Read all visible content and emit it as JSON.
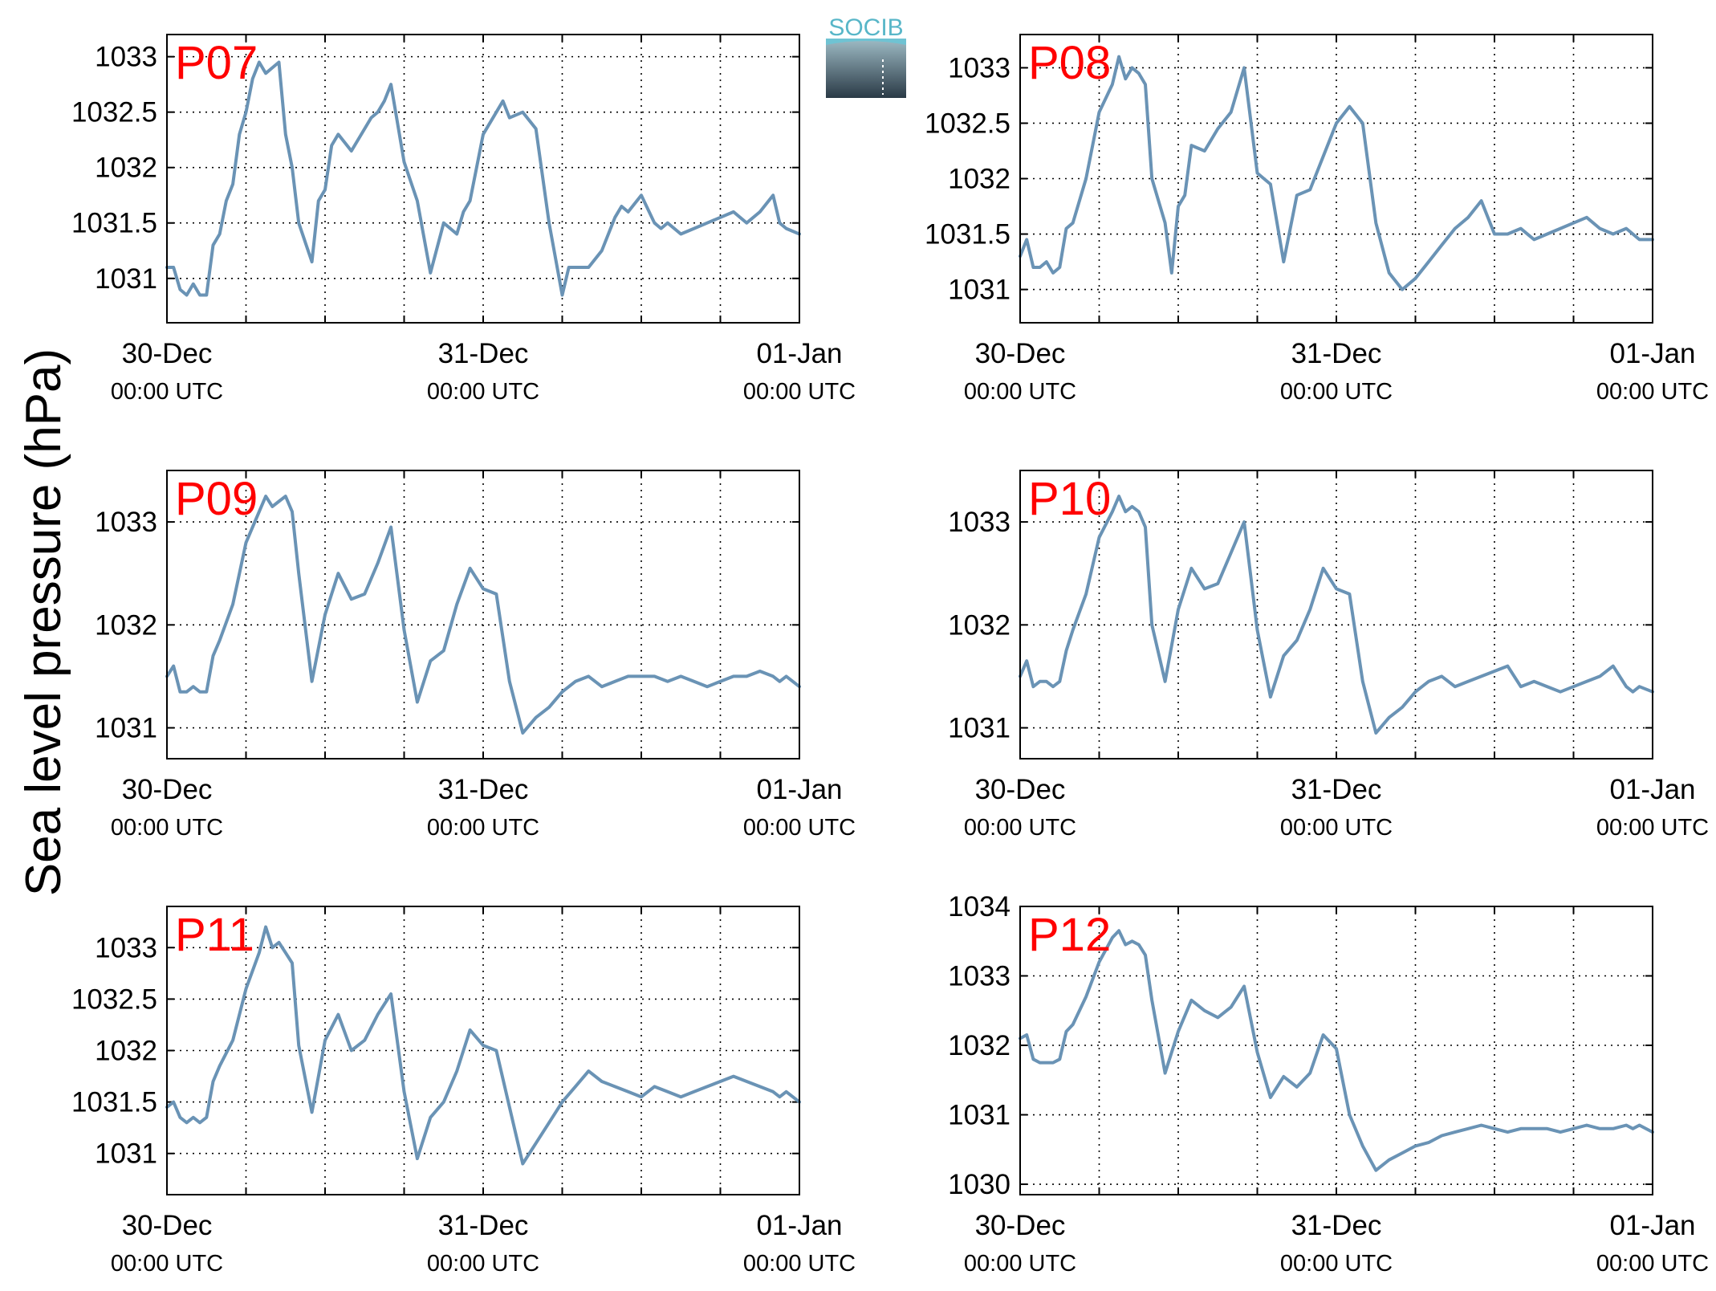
{
  "figure": {
    "ylabel": "Sea level pressure (hPa)",
    "logo_text": "SOCIB",
    "line_color": "#6a93b5",
    "station_label_color": "#ff0000",
    "x_ticks": [
      {
        "day": "30-Dec",
        "time": "00:00 UTC"
      },
      {
        "day": "31-Dec",
        "time": "00:00 UTC"
      },
      {
        "day": "01-Jan",
        "time": "00:00 UTC"
      }
    ]
  },
  "chart_data": [
    {
      "type": "line",
      "title": "P07",
      "ylim": [
        1030.6,
        1033.2
      ],
      "yticks": [
        "1031",
        "1031.5",
        "1032",
        "1032.5",
        "1033"
      ],
      "xlim": [
        0,
        48
      ],
      "grid": true,
      "x": [
        0,
        0.5,
        1,
        1.5,
        2,
        2.5,
        3,
        3.5,
        4,
        4.5,
        5,
        5.5,
        6,
        6.5,
        7,
        7.5,
        8,
        8.5,
        9,
        9.5,
        10,
        11,
        11.5,
        12,
        12.5,
        13,
        14,
        15,
        15.5,
        16,
        16.5,
        17,
        18,
        19,
        20,
        21,
        22,
        22.5,
        23,
        24,
        25,
        25.5,
        26,
        27,
        28,
        29,
        30,
        30.5,
        31,
        32,
        33,
        34,
        34.5,
        35,
        36,
        37,
        37.5,
        38,
        39,
        40,
        41,
        42,
        43,
        44,
        45,
        46,
        46.5,
        47,
        48
      ],
      "values": [
        1031.1,
        1031.1,
        1030.9,
        1030.85,
        1030.95,
        1030.85,
        1030.85,
        1031.3,
        1031.4,
        1031.7,
        1031.85,
        1032.3,
        1032.5,
        1032.8,
        1032.95,
        1032.85,
        1032.9,
        1032.95,
        1032.3,
        1032.0,
        1031.5,
        1031.15,
        1031.7,
        1031.8,
        1032.2,
        1032.3,
        1032.15,
        1032.35,
        1032.45,
        1032.5,
        1032.6,
        1032.75,
        1032.05,
        1031.7,
        1031.05,
        1031.5,
        1031.4,
        1031.6,
        1031.7,
        1032.3,
        1032.5,
        1032.6,
        1032.45,
        1032.5,
        1032.35,
        1031.5,
        1030.85,
        1031.1,
        1031.1,
        1031.1,
        1031.25,
        1031.55,
        1031.65,
        1031.6,
        1031.75,
        1031.5,
        1031.45,
        1031.5,
        1031.4,
        1031.45,
        1031.5,
        1031.55,
        1031.6,
        1031.5,
        1031.6,
        1031.75,
        1031.5,
        1031.45,
        1031.4
      ]
    },
    {
      "type": "line",
      "title": "P08",
      "ylim": [
        1030.7,
        1033.3
      ],
      "yticks": [
        "1031",
        "1031.5",
        "1032",
        "1032.5",
        "1033"
      ],
      "xlim": [
        0,
        48
      ],
      "grid": true,
      "x": [
        0,
        0.5,
        1,
        1.5,
        2,
        2.5,
        3,
        3.5,
        4,
        5,
        6,
        7,
        7.5,
        8,
        8.5,
        9,
        9.5,
        10,
        11,
        11.5,
        12,
        12.5,
        13,
        14,
        15,
        16,
        17,
        18,
        19,
        20,
        21,
        22,
        23,
        24,
        25,
        26,
        27,
        28,
        29,
        30,
        31,
        32,
        33,
        34,
        35,
        36,
        37,
        38,
        39,
        40,
        41,
        42,
        43,
        44,
        45,
        46,
        46.5,
        47,
        48
      ],
      "values": [
        1031.3,
        1031.45,
        1031.2,
        1031.2,
        1031.25,
        1031.15,
        1031.2,
        1031.55,
        1031.6,
        1032.0,
        1032.6,
        1032.85,
        1033.1,
        1032.9,
        1033.0,
        1032.95,
        1032.85,
        1032.0,
        1031.6,
        1031.15,
        1031.75,
        1031.85,
        1032.3,
        1032.25,
        1032.45,
        1032.6,
        1033.0,
        1032.05,
        1031.95,
        1031.25,
        1031.85,
        1031.9,
        1032.2,
        1032.5,
        1032.65,
        1032.5,
        1031.6,
        1031.15,
        1031.0,
        1031.1,
        1031.25,
        1031.4,
        1031.55,
        1031.65,
        1031.8,
        1031.5,
        1031.5,
        1031.55,
        1031.45,
        1031.5,
        1031.55,
        1031.6,
        1031.65,
        1031.55,
        1031.5,
        1031.55,
        1031.5,
        1031.45,
        1031.45
      ]
    },
    {
      "type": "line",
      "title": "P09",
      "ylim": [
        1030.7,
        1033.5
      ],
      "yticks": [
        "1031",
        "1032",
        "1033"
      ],
      "xlim": [
        0,
        48
      ],
      "grid": true,
      "x": [
        0,
        0.5,
        1,
        1.5,
        2,
        2.5,
        3,
        3.5,
        4,
        5,
        6,
        7,
        7.5,
        8,
        8.5,
        9,
        9.5,
        10,
        11,
        12,
        13,
        14,
        15,
        16,
        17,
        18,
        19,
        20,
        21,
        22,
        23,
        24,
        25,
        26,
        27,
        28,
        29,
        30,
        31,
        32,
        33,
        34,
        35,
        36,
        37,
        38,
        39,
        40,
        41,
        42,
        43,
        44,
        45,
        46,
        46.5,
        47,
        48
      ],
      "values": [
        1031.5,
        1031.6,
        1031.35,
        1031.35,
        1031.4,
        1031.35,
        1031.35,
        1031.7,
        1031.85,
        1032.2,
        1032.8,
        1033.1,
        1033.25,
        1033.15,
        1033.2,
        1033.25,
        1033.1,
        1032.5,
        1031.45,
        1032.1,
        1032.5,
        1032.25,
        1032.3,
        1032.6,
        1032.95,
        1031.95,
        1031.25,
        1031.65,
        1031.75,
        1032.2,
        1032.55,
        1032.35,
        1032.3,
        1031.45,
        1030.95,
        1031.1,
        1031.2,
        1031.35,
        1031.45,
        1031.5,
        1031.4,
        1031.45,
        1031.5,
        1031.5,
        1031.5,
        1031.45,
        1031.5,
        1031.45,
        1031.4,
        1031.45,
        1031.5,
        1031.5,
        1031.55,
        1031.5,
        1031.45,
        1031.5,
        1031.4
      ]
    },
    {
      "type": "line",
      "title": "P10",
      "ylim": [
        1030.7,
        1033.5
      ],
      "yticks": [
        "1031",
        "1032",
        "1033"
      ],
      "xlim": [
        0,
        48
      ],
      "grid": true,
      "x": [
        0,
        0.5,
        1,
        1.5,
        2,
        2.5,
        3,
        3.5,
        4,
        5,
        6,
        7,
        7.5,
        8,
        8.5,
        9,
        9.5,
        10,
        11,
        12,
        13,
        14,
        15,
        16,
        17,
        18,
        19,
        20,
        21,
        22,
        23,
        24,
        25,
        26,
        27,
        28,
        29,
        30,
        31,
        32,
        33,
        34,
        35,
        36,
        37,
        38,
        39,
        40,
        41,
        42,
        43,
        44,
        45,
        46,
        46.5,
        47,
        48
      ],
      "values": [
        1031.5,
        1031.65,
        1031.4,
        1031.45,
        1031.45,
        1031.4,
        1031.45,
        1031.75,
        1031.95,
        1032.3,
        1032.85,
        1033.1,
        1033.25,
        1033.1,
        1033.15,
        1033.1,
        1032.95,
        1032.0,
        1031.45,
        1032.15,
        1032.55,
        1032.35,
        1032.4,
        1032.7,
        1033.0,
        1031.95,
        1031.3,
        1031.7,
        1031.85,
        1032.15,
        1032.55,
        1032.35,
        1032.3,
        1031.45,
        1030.95,
        1031.1,
        1031.2,
        1031.35,
        1031.45,
        1031.5,
        1031.4,
        1031.45,
        1031.5,
        1031.55,
        1031.6,
        1031.4,
        1031.45,
        1031.4,
        1031.35,
        1031.4,
        1031.45,
        1031.5,
        1031.6,
        1031.4,
        1031.35,
        1031.4,
        1031.35
      ]
    },
    {
      "type": "line",
      "title": "P11",
      "ylim": [
        1030.6,
        1033.4
      ],
      "yticks": [
        "1031",
        "1031.5",
        "1032",
        "1032.5",
        "1033"
      ],
      "xlim": [
        0,
        48
      ],
      "grid": true,
      "x": [
        0,
        0.5,
        1,
        1.5,
        2,
        2.5,
        3,
        3.5,
        4,
        5,
        6,
        7,
        7.5,
        8,
        8.5,
        9,
        9.5,
        10,
        11,
        12,
        13,
        14,
        15,
        16,
        17,
        18,
        19,
        20,
        21,
        22,
        23,
        24,
        25,
        26,
        27,
        28,
        29,
        30,
        31,
        32,
        33,
        34,
        35,
        36,
        37,
        38,
        39,
        40,
        41,
        42,
        43,
        44,
        45,
        46,
        46.5,
        47,
        48
      ],
      "values": [
        1031.45,
        1031.5,
        1031.35,
        1031.3,
        1031.35,
        1031.3,
        1031.35,
        1031.7,
        1031.85,
        1032.1,
        1032.6,
        1032.95,
        1033.2,
        1033.0,
        1033.05,
        1032.95,
        1032.85,
        1032.05,
        1031.4,
        1032.1,
        1032.35,
        1032.0,
        1032.1,
        1032.35,
        1032.55,
        1031.6,
        1030.95,
        1031.35,
        1031.5,
        1031.8,
        1032.2,
        1032.05,
        1032.0,
        1031.45,
        1030.9,
        1031.1,
        1031.3,
        1031.5,
        1031.65,
        1031.8,
        1031.7,
        1031.65,
        1031.6,
        1031.55,
        1031.65,
        1031.6,
        1031.55,
        1031.6,
        1031.65,
        1031.7,
        1031.75,
        1031.7,
        1031.65,
        1031.6,
        1031.55,
        1031.6,
        1031.5
      ]
    },
    {
      "type": "line",
      "title": "P12",
      "ylim": [
        1029.85,
        1034.0
      ],
      "yticks": [
        "1030",
        "1031",
        "1032",
        "1033",
        "1034"
      ],
      "xlim": [
        0,
        48
      ],
      "grid": true,
      "x": [
        0,
        0.5,
        1,
        1.5,
        2,
        2.5,
        3,
        3.5,
        4,
        5,
        6,
        7,
        7.5,
        8,
        8.5,
        9,
        9.5,
        10,
        11,
        12,
        13,
        14,
        15,
        16,
        17,
        18,
        19,
        20,
        21,
        22,
        23,
        24,
        25,
        26,
        27,
        28,
        29,
        30,
        31,
        32,
        33,
        34,
        35,
        36,
        37,
        38,
        39,
        40,
        41,
        42,
        43,
        44,
        45,
        46,
        46.5,
        47,
        48
      ],
      "values": [
        1032.1,
        1032.15,
        1031.8,
        1031.75,
        1031.75,
        1031.75,
        1031.8,
        1032.2,
        1032.3,
        1032.7,
        1033.2,
        1033.55,
        1033.65,
        1033.45,
        1033.5,
        1033.45,
        1033.3,
        1032.65,
        1031.6,
        1032.2,
        1032.65,
        1032.5,
        1032.4,
        1032.55,
        1032.85,
        1031.9,
        1031.25,
        1031.55,
        1031.4,
        1031.6,
        1032.15,
        1031.95,
        1031.0,
        1030.55,
        1030.2,
        1030.35,
        1030.45,
        1030.55,
        1030.6,
        1030.7,
        1030.75,
        1030.8,
        1030.85,
        1030.8,
        1030.75,
        1030.8,
        1030.8,
        1030.8,
        1030.75,
        1030.8,
        1030.85,
        1030.8,
        1030.8,
        1030.85,
        1030.8,
        1030.85,
        1030.75
      ]
    }
  ]
}
